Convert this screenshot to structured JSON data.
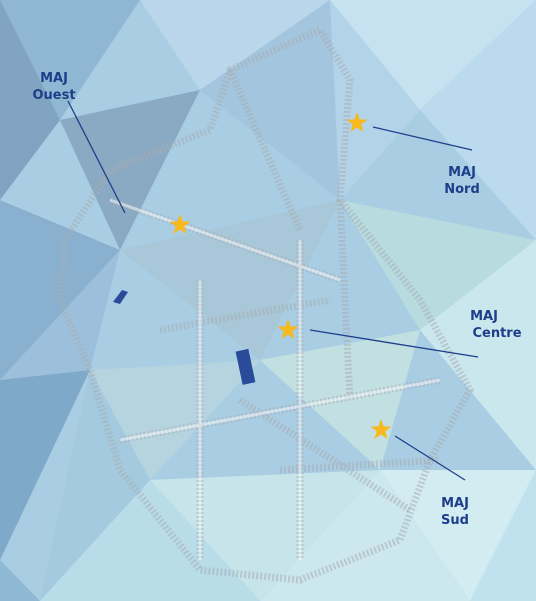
{
  "markers": [
    {
      "label": [
        "MAJ",
        "Ouest"
      ]
    },
    {
      "label": [
        "MAJ",
        "Nord"
      ]
    },
    {
      "label": [
        "MAJ",
        "Centre"
      ]
    },
    {
      "label": [
        "MAJ",
        "Sud"
      ]
    }
  ]
}
